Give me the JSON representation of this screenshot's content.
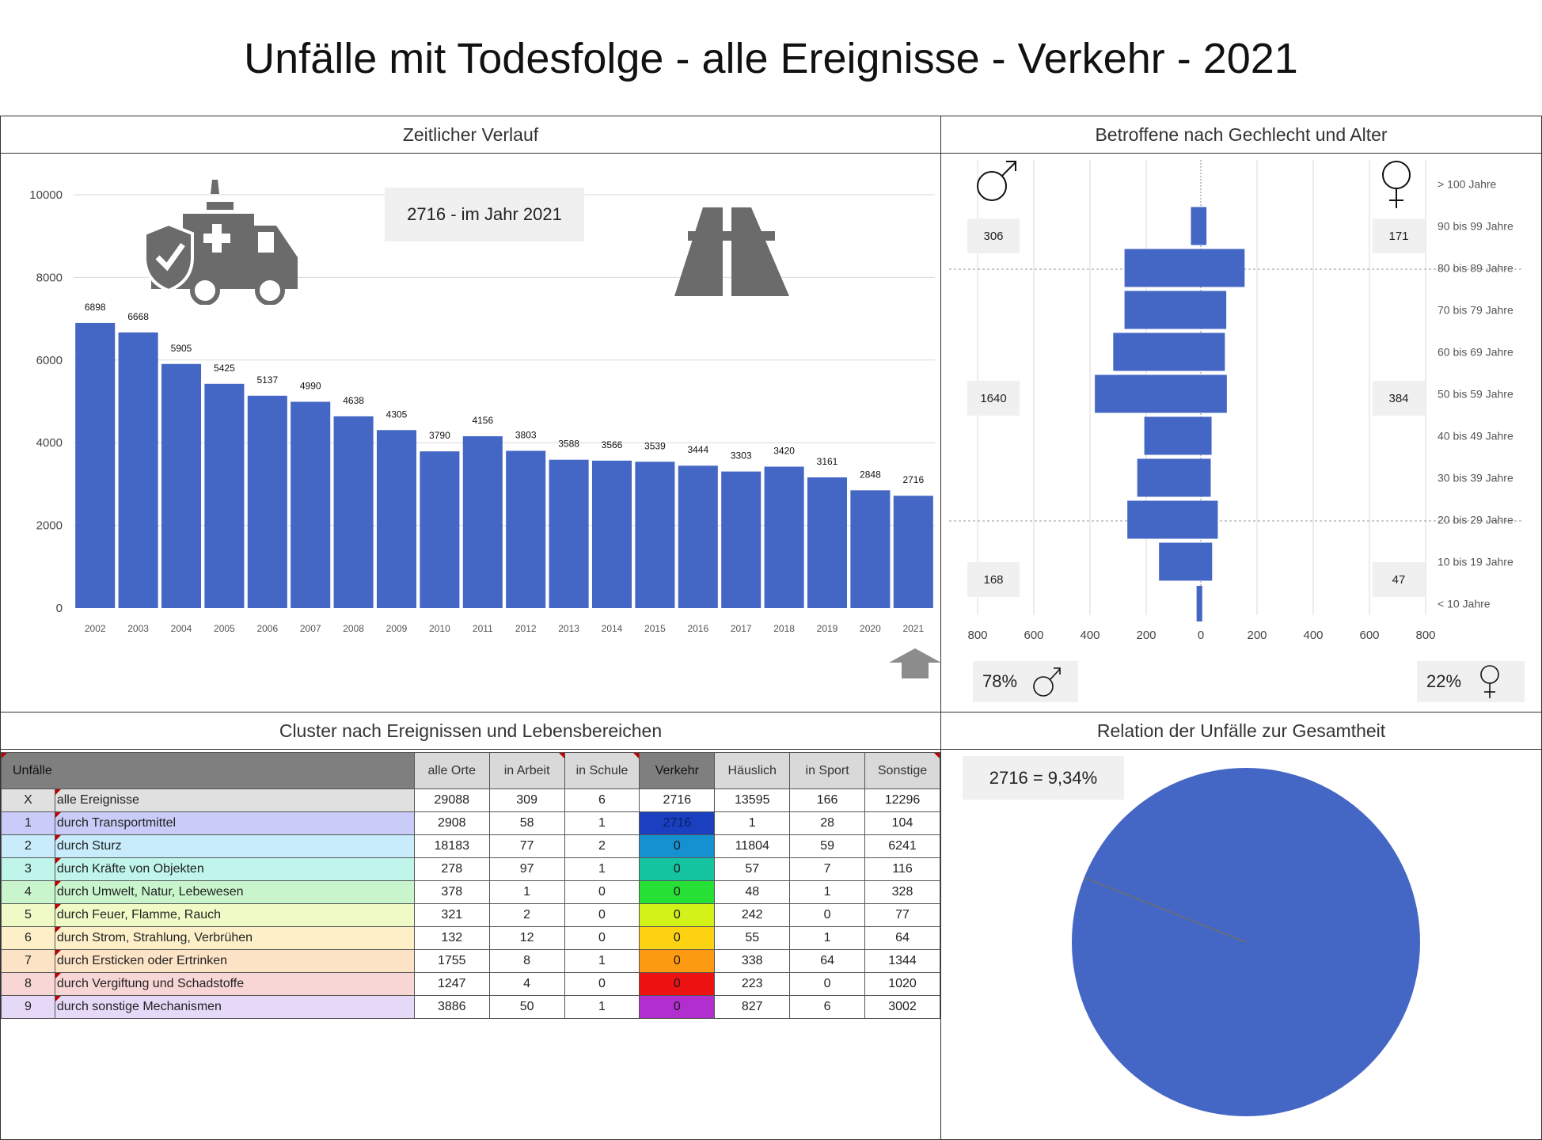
{
  "title": "Unfälle mit Todesfolge - alle Ereignisse - Verkehr - 2021",
  "panels": {
    "timeline": "Zeitlicher Verlauf",
    "gender_age": "Betroffene nach Gechlecht und Alter",
    "cluster": "Cluster nach Ereignissen und Lebensbereichen",
    "relation": "Relation der Unfälle zur Gesamtheit"
  },
  "highlight_label": "2716 - im Jahr 2021",
  "relation_label": "2716 =  9,34%",
  "icons": [
    "ambulance-icon",
    "road-icon",
    "arrow-up-icon",
    "male-symbol-icon",
    "female-symbol-icon"
  ],
  "pyramid": {
    "male_totals": [
      "306",
      "1640",
      "168"
    ],
    "female_totals": [
      "171",
      "384",
      "47"
    ],
    "male_share": "78%",
    "female_share": "22%"
  },
  "table": {
    "corner": "Unfälle",
    "columns": [
      "alle Orte",
      "in Arbeit",
      "in Schule",
      "Verkehr",
      "Häuslich",
      "in Sport",
      "Sonstige"
    ],
    "rows": [
      {
        "id": "X",
        "label": "alle Ereignisse",
        "values": [
          "29088",
          "309",
          "6",
          "2716",
          "13595",
          "166",
          "12296"
        ],
        "bg": "#e0e0e0",
        "verkehr_bg": "#ffffff"
      },
      {
        "id": "1",
        "label": "durch Transportmittel",
        "values": [
          "2908",
          "58",
          "1",
          "2716",
          "1",
          "28",
          "104"
        ],
        "bg": "#c9ccf8",
        "verkehr_bg": "#1a3fbf"
      },
      {
        "id": "2",
        "label": "durch Sturz",
        "values": [
          "18183",
          "77",
          "2",
          "0",
          "11804",
          "59",
          "6241"
        ],
        "bg": "#c8ecfb",
        "verkehr_bg": "#1591d1"
      },
      {
        "id": "3",
        "label": "durch Kräfte von Objekten",
        "values": [
          "278",
          "97",
          "1",
          "0",
          "57",
          "7",
          "116"
        ],
        "bg": "#bff5ea",
        "verkehr_bg": "#14c4a0"
      },
      {
        "id": "4",
        "label": "durch Umwelt, Natur, Lebewesen",
        "values": [
          "378",
          "1",
          "0",
          "0",
          "48",
          "1",
          "328"
        ],
        "bg": "#c9f5cd",
        "verkehr_bg": "#27e036"
      },
      {
        "id": "5",
        "label": "durch Feuer, Flamme, Rauch",
        "values": [
          "321",
          "2",
          "0",
          "0",
          "242",
          "0",
          "77"
        ],
        "bg": "#effbc7",
        "verkehr_bg": "#d2f21a"
      },
      {
        "id": "6",
        "label": "durch Strom, Strahlung, Verbrühen",
        "values": [
          "132",
          "12",
          "0",
          "0",
          "55",
          "1",
          "64"
        ],
        "bg": "#fdf0c9",
        "verkehr_bg": "#fcd212"
      },
      {
        "id": "7",
        "label": "durch Ersticken oder Ertrinken",
        "values": [
          "1755",
          "8",
          "1",
          "0",
          "338",
          "64",
          "1344"
        ],
        "bg": "#fde3c6",
        "verkehr_bg": "#fc9a12"
      },
      {
        "id": "8",
        "label": "durch Vergiftung und Schadstoffe",
        "values": [
          "1247",
          "4",
          "0",
          "0",
          "223",
          "0",
          "1020"
        ],
        "bg": "#f9d6d6",
        "verkehr_bg": "#ec1212"
      },
      {
        "id": "9",
        "label": "durch sonstige Mechanismen",
        "values": [
          "3886",
          "50",
          "1",
          "0",
          "827",
          "6",
          "3002"
        ],
        "bg": "#e6d9f7",
        "verkehr_bg": "#b22fcf"
      }
    ]
  },
  "chart_data": [
    {
      "type": "bar",
      "categories": [
        "2002",
        "2003",
        "2004",
        "2005",
        "2006",
        "2007",
        "2008",
        "2009",
        "2010",
        "2011",
        "2012",
        "2013",
        "2014",
        "2015",
        "2016",
        "2017",
        "2018",
        "2019",
        "2020",
        "2021"
      ],
      "values": [
        6898,
        6668,
        5905,
        5425,
        5137,
        4990,
        4638,
        4305,
        3790,
        4156,
        3803,
        3588,
        3566,
        3539,
        3444,
        3303,
        3420,
        3161,
        2848,
        2716
      ],
      "ylim": [
        0,
        10000
      ],
      "yticks": [
        0,
        2000,
        4000,
        6000,
        8000,
        10000
      ],
      "grid": true,
      "color": "#4466c4"
    },
    {
      "type": "bar",
      "orientation": "horizontal",
      "categories": [
        "> 100 Jahre",
        "90 bis 99 Jahre",
        "80 bis 89 Jahre",
        "70 bis 79 Jahre",
        "60 bis 69 Jahre",
        "50 bis 59 Jahre",
        "40 bis 49 Jahre",
        "30 bis 39 Jahre",
        "20 bis 29 Jahre",
        "10 bis 19 Jahre",
        "< 10 Jahre"
      ],
      "series": [
        {
          "values": [
            0,
            35,
            270,
            270,
            310,
            375,
            200,
            225,
            260,
            148,
            15
          ]
        },
        {
          "values": [
            0,
            20,
            155,
            90,
            85,
            92,
            38,
            35,
            60,
            40,
            5
          ]
        }
      ],
      "xlim": [
        -800,
        800
      ],
      "xticks": [
        "800",
        "600",
        "400",
        "200",
        "0",
        "200",
        "400",
        "600",
        "800"
      ],
      "color": "#4466c4"
    },
    {
      "type": "pie",
      "values": [
        2716,
        26372
      ],
      "color": "#4466c4"
    }
  ]
}
